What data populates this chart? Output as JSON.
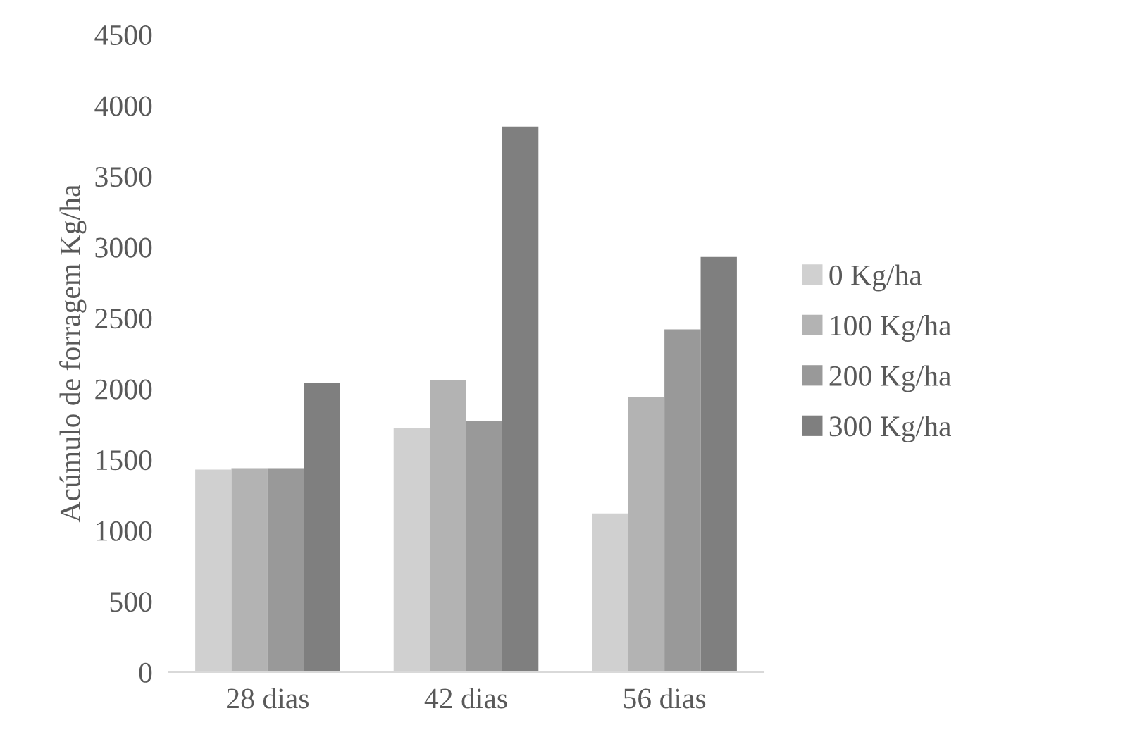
{
  "chart_data": {
    "type": "bar",
    "ylabel": "Acúmulo de forragem Kg/ha",
    "categories": [
      "28 dias",
      "42 dias",
      "56 dias"
    ],
    "series": [
      {
        "name": "0 Kg/ha",
        "color": "#d0d0d0",
        "values": [
          1430,
          1720,
          1120
        ]
      },
      {
        "name": "100 Kg/ha",
        "color": "#b3b3b3",
        "values": [
          1440,
          2060,
          1940
        ]
      },
      {
        "name": "200 Kg/ha",
        "color": "#999999",
        "values": [
          1440,
          1770,
          2420
        ]
      },
      {
        "name": "300 Kg/ha",
        "color": "#7f7f7f",
        "values": [
          2040,
          3850,
          2930
        ]
      }
    ],
    "ylim": [
      0,
      4500
    ],
    "yticks": [
      0,
      500,
      1000,
      1500,
      2000,
      2500,
      3000,
      3500,
      4000,
      4500
    ],
    "grid": false,
    "legend": "right"
  }
}
